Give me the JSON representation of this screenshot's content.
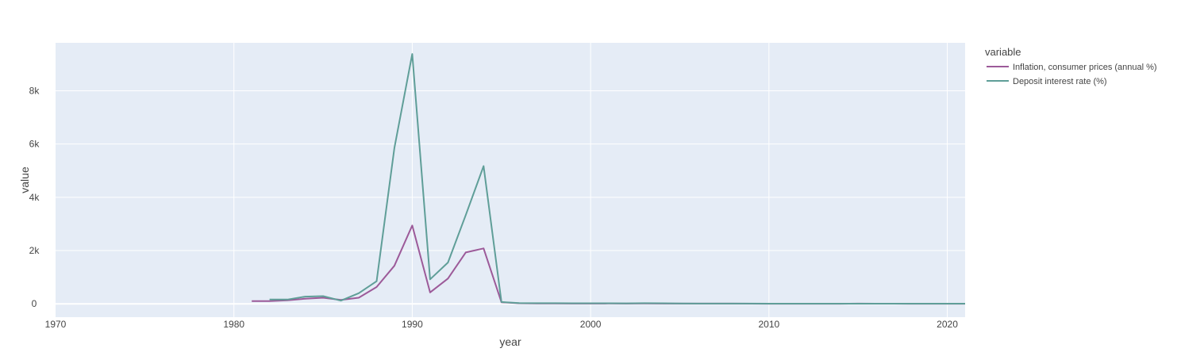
{
  "chart_data": {
    "type": "line",
    "xlabel": "year",
    "ylabel": "value",
    "xlim": [
      1970,
      2021
    ],
    "ylim": [
      -500,
      9800
    ],
    "x_ticks": [
      1970,
      1980,
      1990,
      2000,
      2010,
      2020
    ],
    "y_ticks": [
      0,
      2000,
      4000,
      6000,
      8000
    ],
    "y_tick_labels": [
      "0",
      "2k",
      "4k",
      "6k",
      "8k"
    ],
    "grid": true,
    "legend": {
      "title": "variable",
      "placement": "right"
    },
    "series": [
      {
        "name": "Inflation, consumer prices (annual %)",
        "color": "#9c5a99",
        "x": [
          1981,
          1982,
          1983,
          1984,
          1985,
          1986,
          1987,
          1988,
          1989,
          1990,
          1991,
          1992,
          1993,
          1994,
          1995,
          1996,
          1997,
          1998,
          1999,
          2000,
          2001,
          2002,
          2003,
          2004,
          2005,
          2006,
          2007,
          2008,
          2009,
          2010,
          2011,
          2012,
          2013,
          2014,
          2015,
          2016,
          2017,
          2018,
          2019,
          2020,
          2021
        ],
        "y": [
          105,
          100,
          130,
          195,
          230,
          150,
          230,
          630,
          1430,
          2940,
          430,
          950,
          1930,
          2080,
          60,
          20,
          15,
          15,
          10,
          10,
          12,
          10,
          15,
          10,
          10,
          8,
          8,
          8,
          5,
          3,
          3,
          3,
          3,
          3,
          8,
          5,
          5,
          3,
          3,
          3,
          3
        ]
      },
      {
        "name": "Deposit interest rate (%)",
        "color": "#5f9e98",
        "x": [
          1982,
          1983,
          1984,
          1985,
          1986,
          1987,
          1988,
          1989,
          1990,
          1991,
          1992,
          1993,
          1994,
          1995,
          1996,
          1997,
          1998,
          1999,
          2000,
          2001,
          2002,
          2003,
          2004,
          2005,
          2006,
          2007,
          2008,
          2009,
          2010,
          2011,
          2012,
          2013,
          2014,
          2015,
          2016,
          2017,
          2018,
          2019,
          2020,
          2021
        ],
        "y": [
          160,
          160,
          270,
          290,
          120,
          400,
          850,
          5850,
          9380,
          920,
          1550,
          3330,
          5170,
          70,
          30,
          25,
          25,
          20,
          20,
          20,
          18,
          25,
          20,
          15,
          10,
          8,
          8,
          8,
          5,
          5,
          5,
          5,
          5,
          5,
          5,
          5,
          5,
          5,
          5,
          5
        ]
      }
    ]
  }
}
